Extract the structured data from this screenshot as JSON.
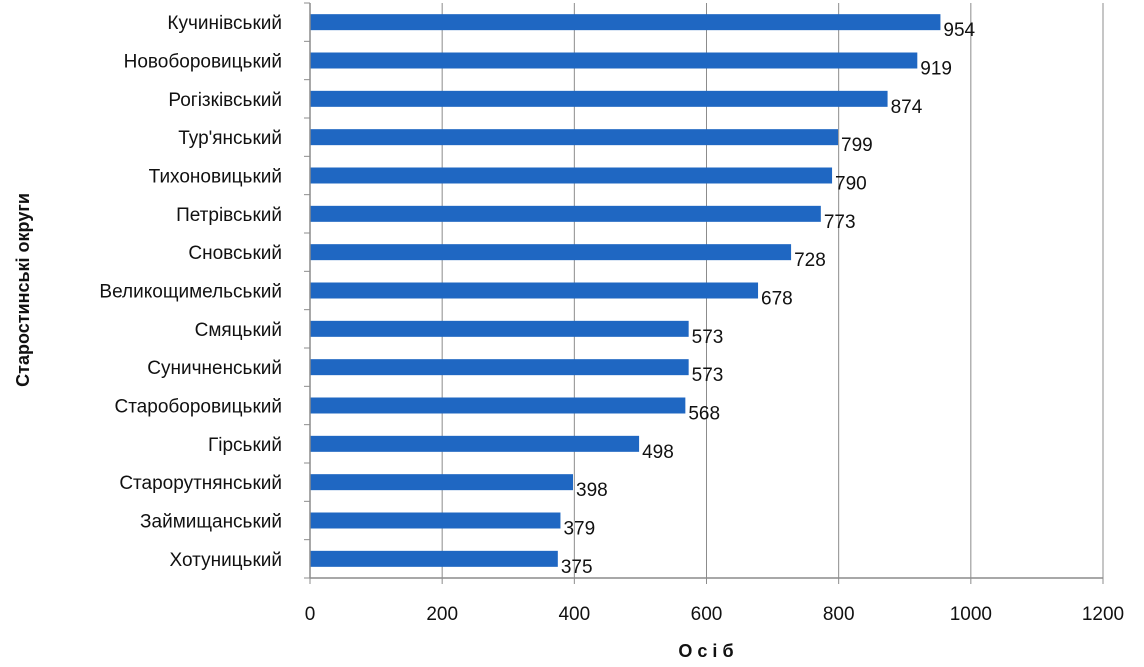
{
  "chart_data": {
    "type": "bar",
    "orientation": "horizontal",
    "categories": [
      "Кучинівський",
      "Новоборовицький",
      "Рогізківський",
      "Тур'янський",
      "Тихоновицький",
      "Петрівський",
      "Сновський",
      "Великощимельський",
      "Смяцький",
      "Суничненський",
      "Староборовицький",
      "Гірський",
      "Старорутнянський",
      "Займищанський",
      "Хотуницький"
    ],
    "values": [
      954,
      919,
      874,
      799,
      790,
      773,
      728,
      678,
      573,
      573,
      568,
      498,
      398,
      379,
      375
    ],
    "xlabel": "О с і б",
    "ylabel": "Старостинські  округи",
    "xlim": [
      0,
      1200
    ],
    "xticks": [
      0,
      200,
      400,
      600,
      800,
      1000,
      1200
    ],
    "grid": "vertical",
    "legend": "none",
    "bar_color": "#1f67c2",
    "grid_color": "#8c8c8c",
    "axis_color": "#8c8c8c"
  }
}
